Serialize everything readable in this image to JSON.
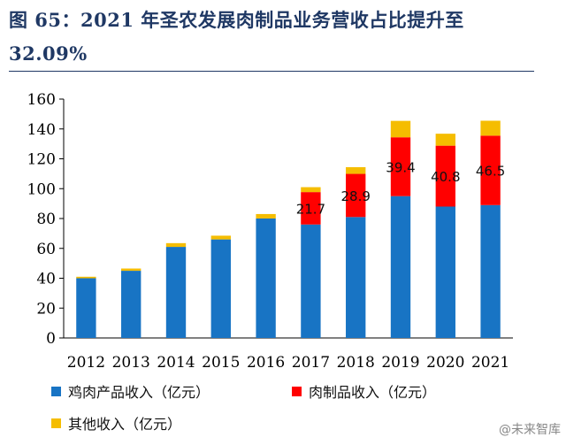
{
  "header": {
    "title": "图 65：2021 年圣农发展肉制品业务营收占比提升至 32.09%"
  },
  "watermark": "@未来智库",
  "chart_data": {
    "type": "bar",
    "stacked": true,
    "categories": [
      "2012",
      "2013",
      "2014",
      "2015",
      "2016",
      "2017",
      "2018",
      "2019",
      "2020",
      "2021"
    ],
    "ylim": [
      0,
      160
    ],
    "yticks": [
      0,
      20,
      40,
      60,
      80,
      100,
      120,
      140,
      160
    ],
    "grid": false,
    "legend_position": "bottom",
    "series": [
      {
        "name": "鸡肉产品收入（亿元）",
        "color": "#1874c4",
        "values": [
          40,
          45,
          61,
          66,
          80,
          76,
          81,
          95,
          88,
          89
        ]
      },
      {
        "name": "肉制品收入（亿元）",
        "color": "#ff0000",
        "values": [
          0,
          0,
          0,
          0,
          0,
          21.7,
          28.9,
          39.4,
          40.8,
          46.5
        ]
      },
      {
        "name": "其他收入（亿元）",
        "color": "#f5bd00",
        "values": [
          1,
          1.5,
          2.5,
          2.5,
          3,
          3.3,
          4.5,
          11,
          8,
          10
        ]
      }
    ],
    "data_labels": {
      "series": "肉制品收入（亿元）",
      "values": [
        null,
        null,
        null,
        null,
        null,
        "21.7",
        "28.9",
        "39.4",
        "40.8",
        "46.5"
      ]
    }
  }
}
